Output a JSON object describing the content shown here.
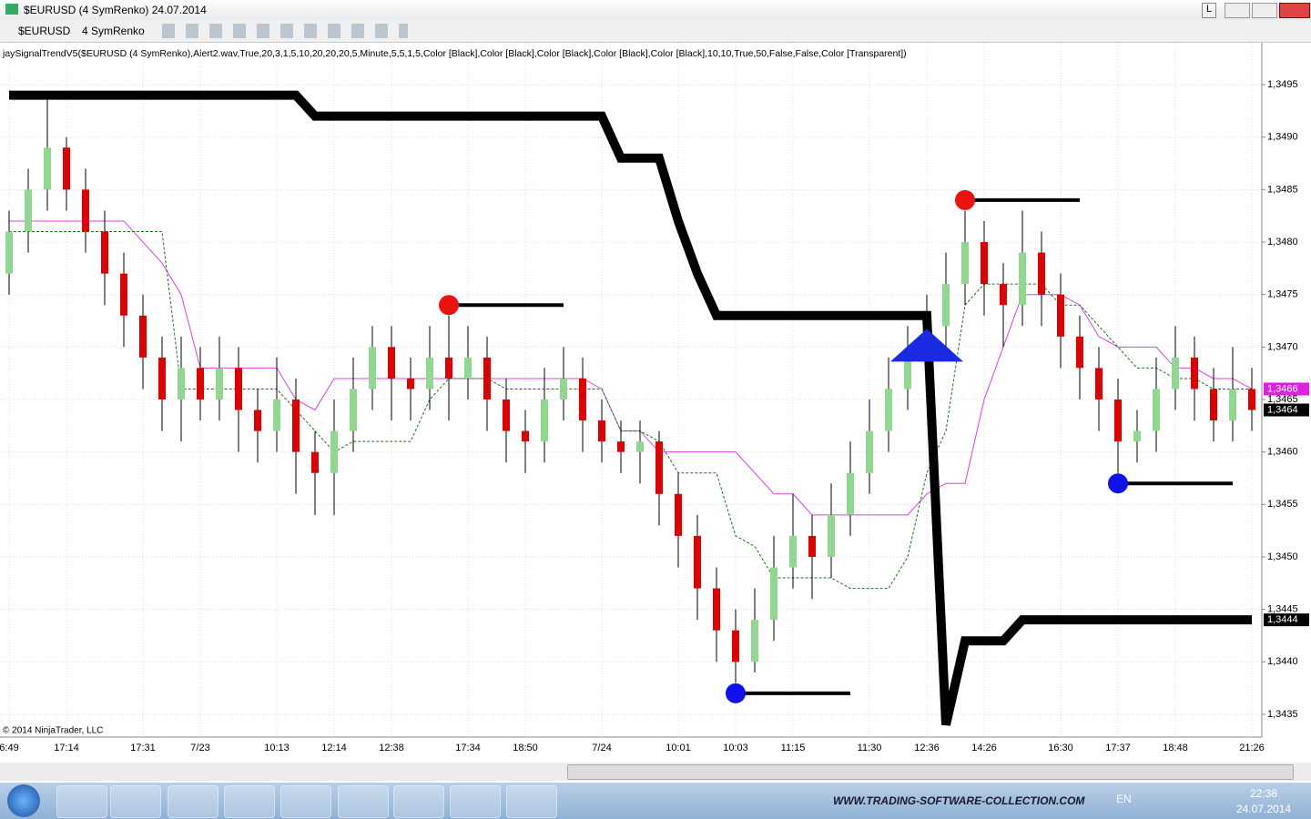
{
  "window": {
    "title": "$EURUSD (4 SymRenko)  24.07.2014",
    "button": "L"
  },
  "toolbar": {
    "instrument": "$EURUSD",
    "bar_type": "4 SymRenko"
  },
  "chart_data": {
    "type": "candlestick",
    "indicator_label": "jaySignalTrendV5($EURUSD (4 SymRenko),Alert2.wav,True,20,3,1,5,10,20,20,20,5,Minute,5,5,1,5,Color [Black],Color [Black],Color [Black],Color [Black],Color [Black],10,10,True,50,False,False,Color [Transparent])",
    "copyright": "© 2014 NinjaTrader, LLC",
    "up_color": "#90d890",
    "down_color": "#e00000",
    "grid": true,
    "ylim": [
      1.3433,
      1.3497
    ],
    "yticks": [
      {
        "value": 1.3435,
        "label": "1,3435"
      },
      {
        "value": 1.344,
        "label": "1,3440"
      },
      {
        "value": 1.3445,
        "label": "1,3445"
      },
      {
        "value": 1.345,
        "label": "1,3450"
      },
      {
        "value": 1.3455,
        "label": "1,3455"
      },
      {
        "value": 1.346,
        "label": "1,3460"
      },
      {
        "value": 1.3465,
        "label": "1,3465"
      },
      {
        "value": 1.347,
        "label": "1,3470"
      },
      {
        "value": 1.3475,
        "label": "1,3475"
      },
      {
        "value": 1.348,
        "label": "1,3480"
      },
      {
        "value": 1.3485,
        "label": "1,3485"
      },
      {
        "value": 1.349,
        "label": "1,3490"
      },
      {
        "value": 1.3495,
        "label": "1,3495"
      }
    ],
    "categories": [
      "6:49",
      null,
      null,
      "17:14",
      null,
      null,
      null,
      "17:31",
      null,
      null,
      "7/23",
      null,
      null,
      null,
      "10:13",
      null,
      null,
      "12:14",
      null,
      null,
      "12:38",
      null,
      null,
      null,
      "17:34",
      null,
      null,
      "18:50",
      null,
      null,
      null,
      "7/24",
      null,
      null,
      null,
      "10:01",
      null,
      null,
      "10:03",
      null,
      null,
      "11:15",
      null,
      null,
      null,
      "11:30",
      null,
      null,
      "12:36",
      null,
      null,
      "14:26",
      null,
      null,
      null,
      "16:30",
      null,
      null,
      "17:37",
      null,
      null,
      "18:48",
      null,
      null,
      null,
      "21:26"
    ],
    "candles": [
      [
        1.3477,
        1.3483,
        1.3475,
        1.3481
      ],
      [
        1.3481,
        1.3487,
        1.3479,
        1.3485
      ],
      [
        1.3485,
        1.3494,
        1.3483,
        1.3489
      ],
      [
        1.3489,
        1.349,
        1.3483,
        1.3485
      ],
      [
        1.3485,
        1.3487,
        1.3479,
        1.3481
      ],
      [
        1.3481,
        1.3483,
        1.3474,
        1.3477
      ],
      [
        1.3477,
        1.3479,
        1.347,
        1.3473
      ],
      [
        1.3473,
        1.3475,
        1.3466,
        1.3469
      ],
      [
        1.3469,
        1.3471,
        1.3462,
        1.3465
      ],
      [
        1.3465,
        1.3471,
        1.3461,
        1.3468
      ],
      [
        1.3468,
        1.347,
        1.3463,
        1.3465
      ],
      [
        1.3465,
        1.3471,
        1.3463,
        1.3468
      ],
      [
        1.3468,
        1.347,
        1.346,
        1.3464
      ],
      [
        1.3464,
        1.3466,
        1.3459,
        1.3462
      ],
      [
        1.3462,
        1.3469,
        1.346,
        1.3465
      ],
      [
        1.3465,
        1.3467,
        1.3456,
        1.346
      ],
      [
        1.346,
        1.3462,
        1.3454,
        1.3458
      ],
      [
        1.3458,
        1.3465,
        1.3454,
        1.3462
      ],
      [
        1.3462,
        1.3469,
        1.346,
        1.3466
      ],
      [
        1.3466,
        1.3472,
        1.3464,
        1.347
      ],
      [
        1.347,
        1.3472,
        1.3463,
        1.3467
      ],
      [
        1.3467,
        1.3469,
        1.3463,
        1.3466
      ],
      [
        1.3466,
        1.3472,
        1.3464,
        1.3469
      ],
      [
        1.3469,
        1.3473,
        1.3463,
        1.3467
      ],
      [
        1.3467,
        1.3472,
        1.3465,
        1.3469
      ],
      [
        1.3469,
        1.3471,
        1.3462,
        1.3465
      ],
      [
        1.3465,
        1.3467,
        1.3459,
        1.3462
      ],
      [
        1.3462,
        1.3464,
        1.3458,
        1.3461
      ],
      [
        1.3461,
        1.3468,
        1.3459,
        1.3465
      ],
      [
        1.3465,
        1.347,
        1.3463,
        1.3467
      ],
      [
        1.3467,
        1.3469,
        1.346,
        1.3463
      ],
      [
        1.3463,
        1.3465,
        1.3459,
        1.3461
      ],
      [
        1.3461,
        1.3463,
        1.3458,
        1.346
      ],
      [
        1.346,
        1.3463,
        1.3457,
        1.3461
      ],
      [
        1.3461,
        1.3462,
        1.3453,
        1.3456
      ],
      [
        1.3456,
        1.3458,
        1.3449,
        1.3452
      ],
      [
        1.3452,
        1.3454,
        1.3444,
        1.3447
      ],
      [
        1.3447,
        1.3449,
        1.344,
        1.3443
      ],
      [
        1.3443,
        1.3445,
        1.3438,
        1.344
      ],
      [
        1.344,
        1.3447,
        1.3439,
        1.3444
      ],
      [
        1.3444,
        1.3452,
        1.3442,
        1.3449
      ],
      [
        1.3449,
        1.3456,
        1.3447,
        1.3452
      ],
      [
        1.3452,
        1.3454,
        1.3446,
        1.345
      ],
      [
        1.345,
        1.3457,
        1.3448,
        1.3454
      ],
      [
        1.3454,
        1.3461,
        1.3452,
        1.3458
      ],
      [
        1.3458,
        1.3465,
        1.3456,
        1.3462
      ],
      [
        1.3462,
        1.3469,
        1.346,
        1.3466
      ],
      [
        1.3466,
        1.3472,
        1.3464,
        1.3469
      ],
      [
        1.3469,
        1.3475,
        1.3467,
        1.3472
      ],
      [
        1.3472,
        1.3479,
        1.347,
        1.3476
      ],
      [
        1.3476,
        1.3483,
        1.3474,
        1.348
      ],
      [
        1.348,
        1.3482,
        1.3473,
        1.3476
      ],
      [
        1.3476,
        1.3478,
        1.347,
        1.3474
      ],
      [
        1.3474,
        1.3483,
        1.3472,
        1.3479
      ],
      [
        1.3479,
        1.3481,
        1.3472,
        1.3475
      ],
      [
        1.3475,
        1.3477,
        1.3468,
        1.3471
      ],
      [
        1.3471,
        1.3473,
        1.3465,
        1.3468
      ],
      [
        1.3468,
        1.347,
        1.3462,
        1.3465
      ],
      [
        1.3465,
        1.3467,
        1.3458,
        1.3461
      ],
      [
        1.3461,
        1.3464,
        1.3459,
        1.3462
      ],
      [
        1.3462,
        1.3469,
        1.346,
        1.3466
      ],
      [
        1.3466,
        1.3472,
        1.3464,
        1.3469
      ],
      [
        1.3469,
        1.3471,
        1.3463,
        1.3466
      ],
      [
        1.3466,
        1.3468,
        1.3461,
        1.3463
      ],
      [
        1.3463,
        1.347,
        1.3461,
        1.3466
      ],
      [
        1.3466,
        1.3468,
        1.3462,
        1.3464
      ]
    ],
    "upper_band": {
      "color": "#e040e0",
      "values": [
        1.3482,
        1.3482,
        1.3482,
        1.3482,
        1.3482,
        1.3482,
        1.3482,
        1.348,
        1.3478,
        1.3475,
        1.3468,
        1.3468,
        1.3468,
        1.3468,
        1.3468,
        1.3465,
        1.3464,
        1.3467,
        1.3467,
        1.3467,
        1.3467,
        1.3467,
        1.3467,
        1.3467,
        1.3467,
        1.3467,
        1.3467,
        1.3467,
        1.3467,
        1.3467,
        1.3467,
        1.3466,
        1.3462,
        1.3462,
        1.346,
        1.346,
        1.346,
        1.346,
        1.346,
        1.3458,
        1.3456,
        1.3456,
        1.3454,
        1.3454,
        1.3454,
        1.3454,
        1.3454,
        1.3454,
        1.3456,
        1.3457,
        1.3457,
        1.3465,
        1.347,
        1.3475,
        1.3475,
        1.3475,
        1.3474,
        1.3471,
        1.347,
        1.347,
        1.347,
        1.3468,
        1.3468,
        1.3467,
        1.3467,
        1.3466
      ]
    },
    "lower_band": {
      "color": "#207020",
      "values": [
        1.3481,
        1.3481,
        1.3481,
        1.3481,
        1.3481,
        1.3481,
        1.3481,
        1.3481,
        1.3481,
        1.3466,
        1.3466,
        1.3466,
        1.3466,
        1.3466,
        1.3466,
        1.3464,
        1.3462,
        1.346,
        1.3461,
        1.3461,
        1.3461,
        1.3461,
        1.3465,
        1.3467,
        1.3467,
        1.3467,
        1.3466,
        1.3466,
        1.3466,
        1.3466,
        1.3466,
        1.3466,
        1.3462,
        1.3462,
        1.3461,
        1.3458,
        1.3458,
        1.3458,
        1.3452,
        1.3451,
        1.3448,
        1.3448,
        1.3448,
        1.3448,
        1.3447,
        1.3447,
        1.3447,
        1.345,
        1.3458,
        1.3462,
        1.3474,
        1.3476,
        1.3476,
        1.3476,
        1.3476,
        1.3474,
        1.3474,
        1.3472,
        1.347,
        1.3468,
        1.3468,
        1.3467,
        1.3467,
        1.3466,
        1.3466,
        1.3466
      ]
    },
    "trend_line": {
      "color": "#000000",
      "values": [
        1.3494,
        1.3494,
        1.3494,
        1.3494,
        1.3494,
        1.3494,
        1.3494,
        1.3494,
        1.3494,
        1.3494,
        1.3494,
        1.3494,
        1.3494,
        1.3494,
        1.3494,
        1.3494,
        1.3492,
        1.3492,
        1.3492,
        1.3492,
        1.3492,
        1.3492,
        1.3492,
        1.3492,
        1.3492,
        1.3492,
        1.3492,
        1.3492,
        1.3492,
        1.3492,
        1.3492,
        1.3492,
        1.3488,
        1.3488,
        1.3488,
        1.3482,
        1.3477,
        1.3473,
        1.3473,
        1.3473,
        1.3473,
        1.3473,
        1.3473,
        1.3473,
        1.3473,
        1.3473,
        1.3473,
        1.3473,
        1.3473,
        1.3434,
        1.3442,
        1.3442,
        1.3442,
        1.3444,
        1.3444,
        1.3444,
        1.3444,
        1.3444,
        1.3444,
        1.3444,
        1.3444,
        1.3444,
        1.3444,
        1.3444,
        1.3444,
        1.3444
      ]
    },
    "sell_signals": {
      "color": "#ee1111",
      "values": [
        null,
        null,
        null,
        null,
        null,
        null,
        null,
        null,
        null,
        null,
        null,
        null,
        null,
        null,
        null,
        null,
        null,
        null,
        null,
        null,
        null,
        null,
        null,
        1.3474,
        null,
        null,
        null,
        null,
        null,
        null,
        null,
        null,
        null,
        null,
        null,
        null,
        null,
        null,
        null,
        null,
        null,
        null,
        null,
        null,
        null,
        null,
        null,
        null,
        null,
        null,
        1.3484,
        null,
        null,
        null,
        null,
        null,
        null,
        null,
        null,
        null,
        null,
        null,
        null,
        null,
        null,
        null
      ]
    },
    "buy_signals": {
      "color": "#1111ee",
      "values": [
        null,
        null,
        null,
        null,
        null,
        null,
        null,
        null,
        null,
        null,
        null,
        null,
        null,
        null,
        null,
        null,
        null,
        null,
        null,
        null,
        null,
        null,
        null,
        null,
        null,
        null,
        null,
        null,
        null,
        null,
        null,
        null,
        null,
        null,
        null,
        null,
        null,
        null,
        1.3437,
        null,
        null,
        null,
        null,
        null,
        null,
        null,
        null,
        null,
        null,
        null,
        null,
        null,
        null,
        null,
        null,
        null,
        null,
        null,
        1.3457,
        null,
        null,
        null,
        null,
        null,
        null,
        null
      ]
    },
    "triangle_signals": {
      "color": "#1a2ae0",
      "values": [
        null,
        null,
        null,
        null,
        null,
        null,
        null,
        null,
        null,
        null,
        null,
        null,
        null,
        null,
        null,
        null,
        null,
        null,
        null,
        null,
        null,
        null,
        null,
        null,
        null,
        null,
        null,
        null,
        null,
        null,
        null,
        null,
        null,
        null,
        null,
        null,
        null,
        null,
        null,
        null,
        null,
        null,
        null,
        null,
        null,
        null,
        null,
        null,
        1.347,
        null,
        null,
        null,
        null,
        null,
        null,
        null,
        null,
        null,
        null,
        null,
        null,
        null,
        null,
        null,
        null,
        null
      ]
    },
    "price_labels": [
      {
        "value": 1.3466,
        "label": "1,3466",
        "color": "#e020e0"
      },
      {
        "value": 1.3464,
        "label": "1,3464",
        "color": "#000000"
      },
      {
        "value": 1.3444,
        "label": "1,3444",
        "color": "#000000"
      }
    ]
  },
  "taskbar": {
    "website": "WWW.TRADING-SOFTWARE-COLLECTION.COM",
    "language": "EN",
    "time": "22:38",
    "date": "24.07.2014"
  }
}
